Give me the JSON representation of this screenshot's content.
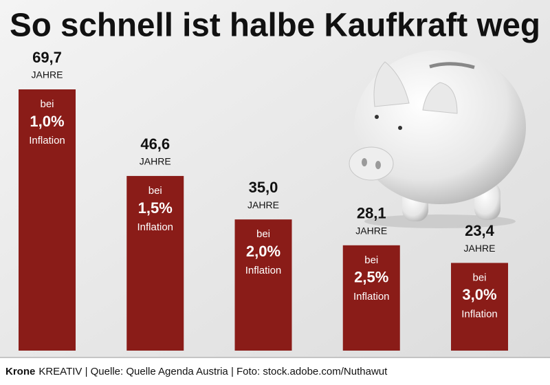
{
  "chart_data": {
    "type": "bar",
    "title": "So schnell ist halbe Kaufkraft weg",
    "categories": [
      "1,0%",
      "1,5%",
      "2,0%",
      "2,5%",
      "3,0%"
    ],
    "values": [
      69.7,
      46.6,
      35.0,
      28.1,
      23.4
    ],
    "value_labels": [
      "69,7",
      "46,6",
      "35,0",
      "28,1",
      "23,4"
    ],
    "unit": "JAHRE",
    "category_prefix": "bei",
    "category_suffix": "Inflation",
    "color": "#8a1c18",
    "footer": {
      "brand": "Krone",
      "text": "KREATIV | Quelle: Quelle Agenda Austria | Foto: stock.adobe.com/Nuthawut"
    }
  }
}
